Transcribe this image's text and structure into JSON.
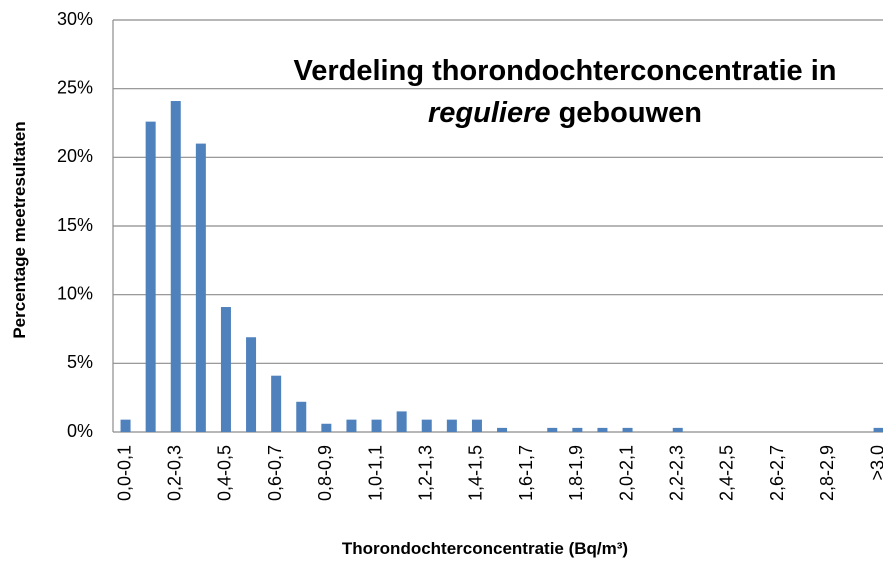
{
  "chart_data": {
    "type": "bar",
    "title": [
      "Verdeling thorondochterconcentratie in",
      "reguliere",
      "gebouwen"
    ],
    "x_label": "Thorondochterconcentratie (Bq/m³)",
    "y_label": "Percentage meetresultaten",
    "categories": [
      "0,0-0,1",
      null,
      "0,2-0,3",
      null,
      "0,4-0,5",
      null,
      "0,6-0,7",
      null,
      "0,8-0,9",
      null,
      "1,0-1,1",
      null,
      "1,2-1,3",
      null,
      "1,4-1,5",
      null,
      "1,6-1,7",
      null,
      "1,8-1,9",
      null,
      "2,0-2,1",
      null,
      "2,2-2,3",
      null,
      "2,4-2,5",
      null,
      "2,6-2,7",
      null,
      "2,8-2,9",
      null,
      ">3,0"
    ],
    "values": [
      0.9,
      22.6,
      24.1,
      21.0,
      9.1,
      6.9,
      4.1,
      2.2,
      0.6,
      0.9,
      0.9,
      1.5,
      0.9,
      0.9,
      0.9,
      0.3,
      0,
      0.3,
      0.3,
      0.3,
      0.3,
      0,
      0.3,
      0,
      0,
      0,
      0,
      0,
      0,
      0,
      0.3
    ],
    "color": "#4f81bd",
    "ylim": [
      0,
      30
    ],
    "yticks": [
      {
        "value": 0,
        "label": "0%"
      },
      {
        "value": 5,
        "label": "5%"
      },
      {
        "value": 10,
        "label": "10%"
      },
      {
        "value": 15,
        "label": "15%"
      },
      {
        "value": 20,
        "label": "20%"
      },
      {
        "value": 25,
        "label": "25%"
      },
      {
        "value": 30,
        "label": "30%"
      }
    ],
    "grid": true
  }
}
